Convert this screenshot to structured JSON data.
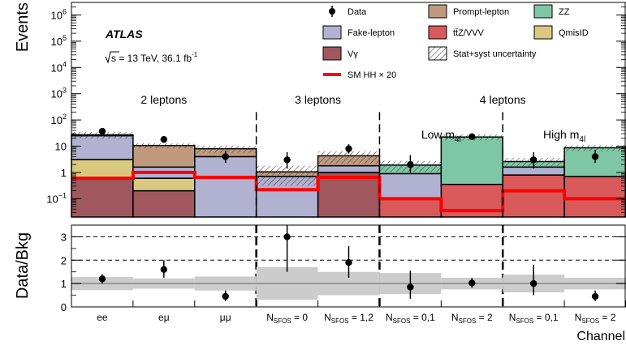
{
  "chart_data": {
    "type": "bar",
    "scale": "log",
    "grid": false,
    "legend_placement": "top-right",
    "colors": {
      "prompt_lepton": "#bf9a7e",
      "zz": "#7fc6a4",
      "fake_lepton": "#b1b1d1",
      "ttz_vvv": "#d95a5a",
      "qmisid": "#d9c97e",
      "vgamma": "#a0575d",
      "signal": "#ff0000"
    },
    "categories": [
      "ee",
      "eμ",
      "μμ",
      "N_SFOS = 0",
      "N_SFOS = 1,2",
      "N_SFOS = 0,1",
      "N_SFOS = 2",
      "N_SFOS = 0,1",
      "N_SFOS = 2"
    ],
    "category_labels": [
      {
        "main": "ee",
        "sub": "",
        "tail": ""
      },
      {
        "main": "eμ",
        "sub": "",
        "tail": ""
      },
      {
        "main": "μμ",
        "sub": "",
        "tail": ""
      },
      {
        "main": "N",
        "sub": "SFOS",
        "tail": " = 0"
      },
      {
        "main": "N",
        "sub": "SFOS",
        "tail": " = 1,2"
      },
      {
        "main": "N",
        "sub": "SFOS",
        "tail": " = 0,1"
      },
      {
        "main": "N",
        "sub": "SFOS",
        "tail": " = 2"
      },
      {
        "main": "N",
        "sub": "SFOS",
        "tail": " = 0,1"
      },
      {
        "main": "N",
        "sub": "SFOS",
        "tail": " = 2"
      }
    ],
    "series": [
      {
        "name": "Vγ",
        "key": "vgamma",
        "values": [
          0.6,
          0.2,
          0,
          0,
          1.0,
          0,
          0,
          0,
          0
        ]
      },
      {
        "name": "QmisID",
        "key": "qmisid",
        "values": [
          2.5,
          0.4,
          0,
          0,
          0,
          0,
          0,
          0,
          0
        ]
      },
      {
        "name": "tt̄Z/VVV",
        "key": "ttz_vvv",
        "values": [
          0,
          0,
          0,
          0,
          0,
          0.1,
          0.35,
          0.8,
          0.7
        ]
      },
      {
        "name": "Fake-lepton",
        "key": "fake_lepton",
        "values": [
          22,
          1.0,
          4.0,
          0.7,
          0.8,
          0.8,
          0,
          0.8,
          0
        ]
      },
      {
        "name": "Prompt-lepton",
        "key": "prompt_lepton",
        "values": [
          2.0,
          9.0,
          4.0,
          0.35,
          2.5,
          0,
          0,
          0,
          0
        ]
      },
      {
        "name": "ZZ",
        "key": "zz",
        "values": [
          0,
          0,
          0,
          0,
          0,
          1.0,
          22,
          1.0,
          8.0
        ]
      }
    ],
    "data_points": {
      "name": "Data",
      "values": [
        37,
        18,
        4,
        3,
        8,
        2,
        23,
        3,
        4
      ],
      "err_low": [
        6,
        4,
        1.7,
        1.6,
        2.8,
        1.1,
        4.7,
        1.6,
        1.7
      ],
      "err_high": [
        7,
        5,
        2.7,
        2.9,
        3.9,
        2.6,
        5.8,
        2.9,
        3.2
      ]
    },
    "signal": {
      "name": "SM HH × 20",
      "values": [
        0.6,
        1.0,
        0.65,
        0.22,
        0.65,
        0.1,
        0.035,
        0.2,
        0.1
      ]
    },
    "uncertainty": {
      "name": "Stat+syst uncertainty",
      "rel": [
        0.28,
        0.22,
        0.3,
        0.7,
        0.5,
        0.45,
        0.25,
        0.38,
        0.25
      ]
    },
    "regions": [
      {
        "label": "2 leptons",
        "sub": "",
        "bins": [
          0,
          2
        ]
      },
      {
        "label": "3 leptons",
        "sub": "",
        "bins": [
          3,
          4
        ]
      },
      {
        "label": "4 leptons",
        "sub": "",
        "bins": [
          5,
          8
        ]
      },
      {
        "label": "Low m",
        "sub": "4l",
        "bins": [
          5,
          6
        ]
      },
      {
        "label": "High m",
        "sub": "4l",
        "bins": [
          7,
          8
        ]
      }
    ],
    "ylabel": "Events",
    "ylim": [
      0.02,
      3000000
    ],
    "y_ticks": [
      {
        "base": "10",
        "exp": "6"
      },
      {
        "base": "10",
        "exp": "5"
      },
      {
        "base": "10",
        "exp": "4"
      },
      {
        "base": "10",
        "exp": "3"
      },
      {
        "base": "10",
        "exp": "2"
      },
      {
        "base": "10",
        "exp": ""
      },
      {
        "base": "1",
        "exp": ""
      },
      {
        "base": "10",
        "exp": "−1"
      }
    ],
    "y_tick_values": [
      1000000,
      100000,
      10000,
      1000,
      100,
      10,
      1,
      0.1
    ],
    "ratio": {
      "ylabel": "Data/Bkg",
      "ylim": [
        0,
        3.5
      ],
      "ticks": [
        "0",
        "1",
        "2",
        "3"
      ],
      "tick_values": [
        0,
        1,
        2,
        3
      ],
      "dashed_lines": [
        2,
        3
      ],
      "values": [
        1.2,
        1.6,
        0.45,
        3.0,
        1.9,
        0.85,
        1.02,
        1.0,
        0.45
      ],
      "err_low": [
        0.2,
        0.35,
        0.2,
        1.5,
        0.65,
        0.5,
        0.2,
        0.5,
        0.2
      ],
      "err_high": [
        0.2,
        0.4,
        0.25,
        1.8,
        0.7,
        0.7,
        0.22,
        0.8,
        0.25
      ],
      "band": [
        0.28,
        0.22,
        0.3,
        0.7,
        0.5,
        0.45,
        0.25,
        0.38,
        0.25
      ]
    },
    "xlabel": "Channel",
    "experiment": "ATLAS",
    "energy": {
      "pre": "s = 13 TeV, 36.1 fb",
      "sup": "-1"
    },
    "legend": [
      {
        "label": "Data",
        "kind": "marker",
        "key": "data"
      },
      {
        "label": "Prompt-lepton",
        "kind": "box",
        "key": "prompt_lepton"
      },
      {
        "label": "ZZ",
        "kind": "box",
        "key": "zz"
      },
      {
        "label": "Fake-lepton",
        "kind": "box",
        "key": "fake_lepton"
      },
      {
        "label": "tt̄Z/VVV",
        "kind": "box",
        "key": "ttz_vvv"
      },
      {
        "label": "QmisID",
        "kind": "box",
        "key": "qmisid"
      },
      {
        "label": "Vγ",
        "kind": "box",
        "key": "vgamma"
      },
      {
        "label": "Stat+syst uncertainty",
        "kind": "hatch",
        "key": "unc"
      },
      {
        "label": "SM HH × 20",
        "kind": "line",
        "key": "signal"
      }
    ]
  }
}
